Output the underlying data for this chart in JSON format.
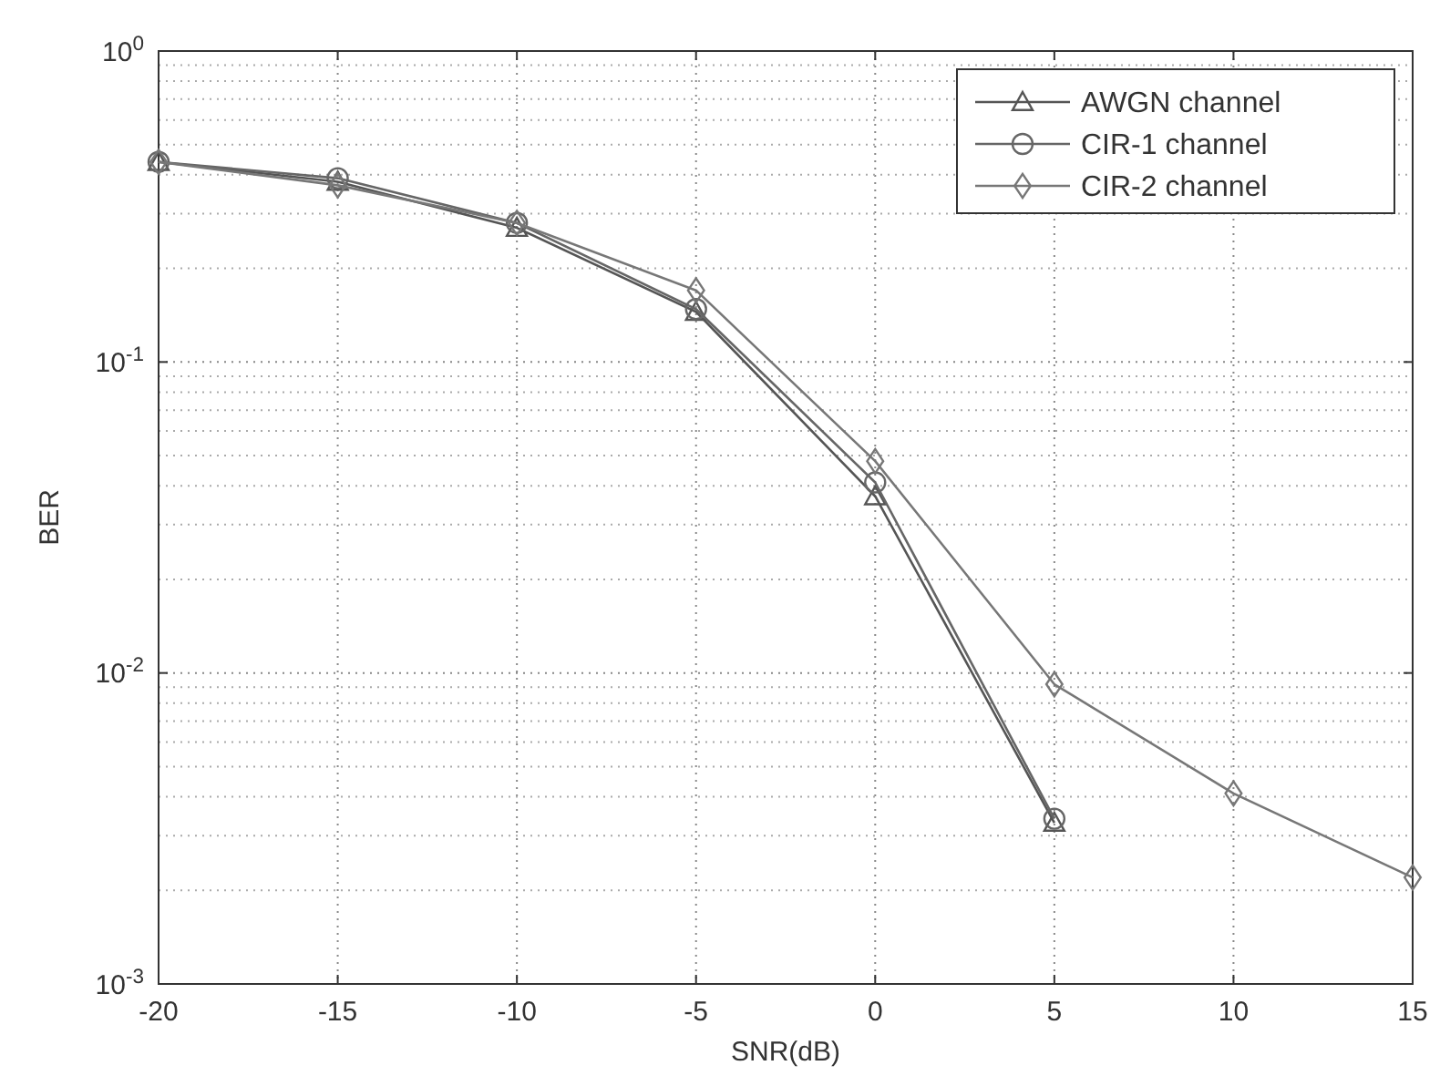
{
  "chart_data": {
    "type": "line",
    "xlabel": "SNR(dB)",
    "ylabel": "BER",
    "log": "y",
    "grid": true,
    "legend": "top right",
    "xlim": [
      -20,
      15
    ],
    "xticks": [
      -20,
      -15,
      -10,
      -5,
      0,
      5,
      10,
      15
    ],
    "ylim": [
      0.001,
      1
    ],
    "yticks": [
      {
        "value": 0.001,
        "label": "10$^{-3}$"
      },
      {
        "value": 0.01,
        "label": "10$^{-2}$"
      },
      {
        "value": 0.1,
        "label": "10$^{-1}$"
      },
      {
        "value": 1,
        "label": "10$^{0}$"
      }
    ],
    "series": [
      {
        "name": "AWGN channel",
        "color": "#555555",
        "marker": "triangle",
        "x": [
          -20,
          -15,
          -10,
          -5,
          0,
          5
        ],
        "values": [
          0.44,
          0.38,
          0.27,
          0.145,
          0.037,
          0.0033
        ]
      },
      {
        "name": "CIR-1 channel",
        "color": "#666666",
        "marker": "circle",
        "x": [
          -20,
          -15,
          -10,
          -5,
          0,
          5
        ],
        "values": [
          0.44,
          0.39,
          0.28,
          0.148,
          0.041,
          0.0034
        ]
      },
      {
        "name": "CIR-2 channel",
        "color": "#777777",
        "marker": "diamond",
        "x": [
          -20,
          -15,
          -10,
          -5,
          0,
          5,
          10,
          15
        ],
        "values": [
          0.44,
          0.37,
          0.28,
          0.17,
          0.048,
          0.0092,
          0.0041,
          0.0022
        ]
      }
    ]
  }
}
